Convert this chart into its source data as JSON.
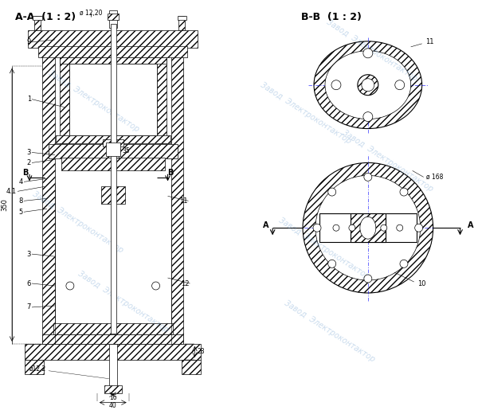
{
  "bg_color": "#ffffff",
  "line_color": "#000000",
  "watermark_color": "#6699cc",
  "watermark_alpha": 0.35,
  "title_aa": "А-А  (1 : 2)",
  "title_bb": "В-В  (1 : 2)",
  "watermark_text": "Завод  Электроконтактор",
  "dim_12_20": "ø 12,20",
  "dim_168": "ø 168",
  "dim_12_2": "ø12,2",
  "dim_350": "350",
  "dim_35": "35",
  "dim_28": "28",
  "dim_16": "16",
  "dim_40": "40"
}
